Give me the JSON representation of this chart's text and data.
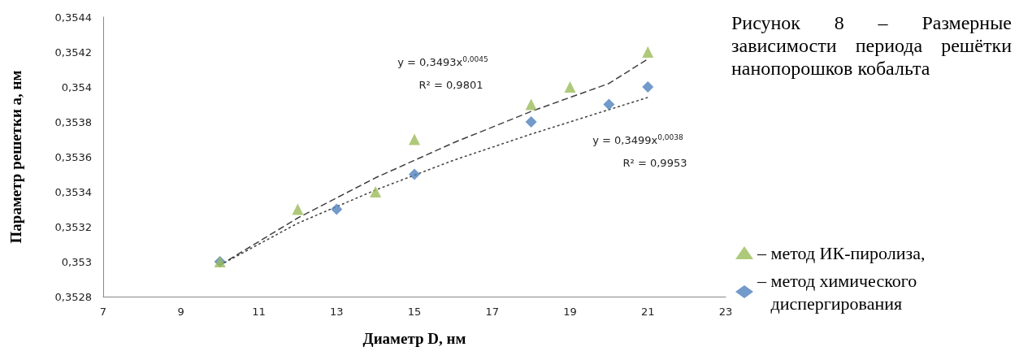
{
  "chart_data": {
    "type": "scatter",
    "xlabel": "Диаметр D, нм",
    "ylabel": "Параметр решетки a, нм",
    "xlim": [
      7,
      23
    ],
    "xticks": [
      7,
      9,
      11,
      13,
      15,
      17,
      19,
      21,
      23
    ],
    "ylim": [
      0.3528,
      0.3544
    ],
    "yticks": [
      {
        "value": 0.3528,
        "label": "0,3528"
      },
      {
        "value": 0.353,
        "label": "0,353"
      },
      {
        "value": 0.3532,
        "label": "0,3532"
      },
      {
        "value": 0.3534,
        "label": "0,3534"
      },
      {
        "value": 0.3536,
        "label": "0,3536"
      },
      {
        "value": 0.3538,
        "label": "0,3538"
      },
      {
        "value": 0.354,
        "label": "0,354"
      },
      {
        "value": 0.3542,
        "label": "0,3542"
      },
      {
        "value": 0.3544,
        "label": "0,3544"
      }
    ],
    "grid": false,
    "legend": "right",
    "series": [
      {
        "type": "line",
        "color": "#404040",
        "line_style": "dashed",
        "marker": "none",
        "x": [
          10,
          12,
          14,
          16,
          18,
          20,
          21
        ],
        "values": [
          0.35298,
          0.35325,
          0.35348,
          0.35368,
          0.35386,
          0.35402,
          0.35416
        ]
      },
      {
        "type": "line",
        "color": "#404040",
        "line_style": "dotted",
        "marker": "none",
        "x": [
          10,
          12,
          14,
          16,
          18,
          20,
          21
        ],
        "values": [
          0.35298,
          0.35322,
          0.35341,
          0.35358,
          0.35373,
          0.35387,
          0.35394
        ]
      },
      {
        "name": "– метод ИК-пиролиза,",
        "color": "#9bbb59",
        "marker": "triangle",
        "x": [
          10,
          12,
          14,
          15,
          18,
          19,
          21
        ],
        "values": [
          0.353,
          0.3533,
          0.3534,
          0.3537,
          0.3539,
          0.354,
          0.3542
        ]
      },
      {
        "name": "– метод химического диспергирования",
        "color": "#4f81bd",
        "marker": "diamond",
        "x": [
          10,
          13,
          15,
          18,
          20,
          21
        ],
        "values": [
          0.353,
          0.3533,
          0.3535,
          0.3538,
          0.3539,
          0.354
        ]
      }
    ],
    "annotations": [
      "y = 0,3493x$^{0,0045}$",
      "R² = 0,9801",
      "y = 0,3499x$^{0,0038}$",
      "R² = 0,9953",
      "Рисунок 8 – Размерные зависимости периода решётки нанопорошков кобальта"
    ]
  }
}
